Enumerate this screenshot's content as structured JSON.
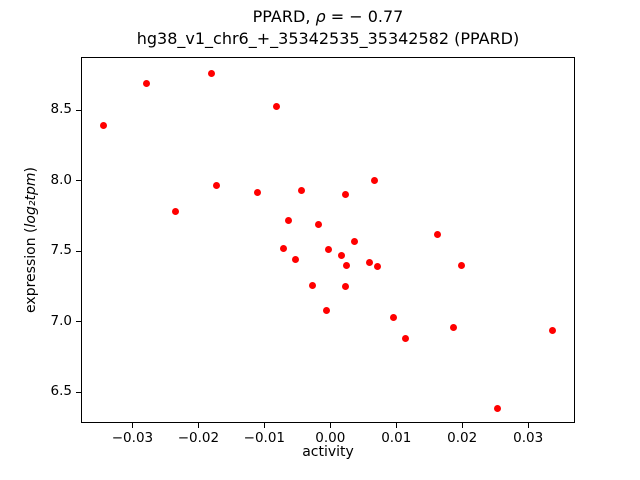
{
  "title": {
    "line1_prefix": "PPARD, ",
    "line1_rho": "ρ",
    "line1_suffix": " = − 0.77",
    "line2": "hg38_v1_chr6_+_35342535_35342582 (PPARD)"
  },
  "axes": {
    "xlabel": "activity",
    "ylabel_prefix": "expression (",
    "ylabel_math": "log₂tpm",
    "ylabel_suffix": ")"
  },
  "chart_data": {
    "type": "scatter",
    "title": "PPARD, ρ = − 0.77",
    "subtitle": "hg38_v1_chr6_+_35342535_35342582 (PPARD)",
    "correlation_rho": -0.77,
    "xlabel": "activity",
    "ylabel": "expression (log2 tpm)",
    "marker_color": "#ff0000",
    "axis_color": "#000000",
    "background_color": "#ffffff",
    "grid": false,
    "legend": false,
    "xlim": [
      -0.0378,
      0.0371
    ],
    "ylim": [
      6.28,
      8.88
    ],
    "x_ticks": [
      {
        "value": -0.03,
        "label": "−0.03"
      },
      {
        "value": -0.02,
        "label": "−0.02"
      },
      {
        "value": -0.01,
        "label": "−0.01"
      },
      {
        "value": 0.0,
        "label": "0.00"
      },
      {
        "value": 0.01,
        "label": "0.01"
      },
      {
        "value": 0.02,
        "label": "0.02"
      },
      {
        "value": 0.03,
        "label": "0.03"
      }
    ],
    "y_ticks": [
      {
        "value": 6.5,
        "label": "6.5"
      },
      {
        "value": 7.0,
        "label": "7.0"
      },
      {
        "value": 7.5,
        "label": "7.5"
      },
      {
        "value": 8.0,
        "label": "8.0"
      },
      {
        "value": 8.5,
        "label": "8.5"
      }
    ],
    "points": [
      [
        -0.018,
        8.76
      ],
      [
        -0.0279,
        8.69
      ],
      [
        -0.0082,
        8.53
      ],
      [
        -0.0344,
        8.39
      ],
      [
        0.0067,
        8.0
      ],
      [
        -0.0172,
        7.97
      ],
      [
        -0.0044,
        7.93
      ],
      [
        -0.0111,
        7.92
      ],
      [
        0.0023,
        7.9
      ],
      [
        -0.0234,
        7.78
      ],
      [
        -0.0063,
        7.72
      ],
      [
        -0.0018,
        7.69
      ],
      [
        0.0163,
        7.62
      ],
      [
        0.0037,
        7.57
      ],
      [
        -0.0071,
        7.52
      ],
      [
        -0.0003,
        7.51
      ],
      [
        0.0017,
        7.47
      ],
      [
        -0.0053,
        7.44
      ],
      [
        0.006,
        7.42
      ],
      [
        0.0025,
        7.4
      ],
      [
        0.0199,
        7.4
      ],
      [
        0.0071,
        7.39
      ],
      [
        -0.0027,
        7.26
      ],
      [
        0.0023,
        7.25
      ],
      [
        -0.0006,
        7.08
      ],
      [
        0.0096,
        7.03
      ],
      [
        0.0187,
        6.96
      ],
      [
        0.0337,
        6.94
      ],
      [
        0.0114,
        6.88
      ],
      [
        0.0253,
        6.38
      ]
    ]
  }
}
